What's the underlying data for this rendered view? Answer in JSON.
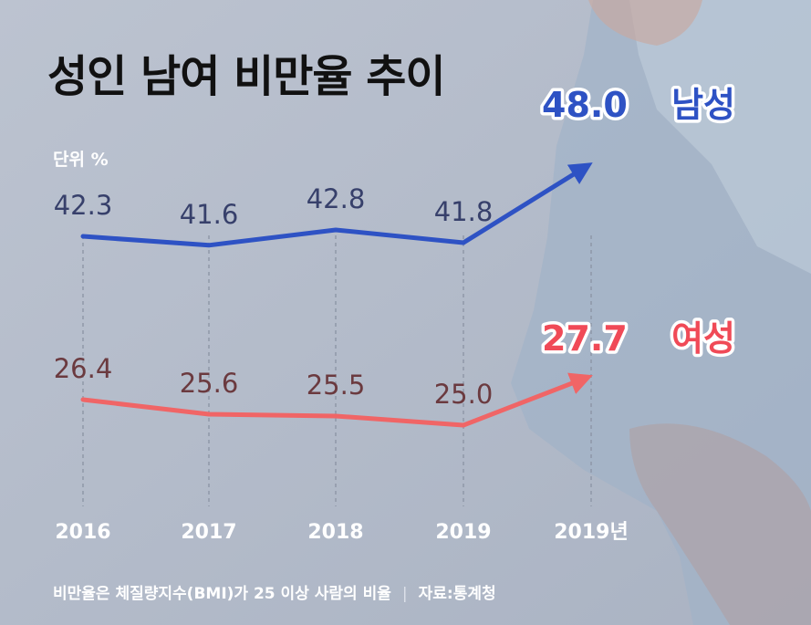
{
  "title": "성인 남여 비만율 추이",
  "unit_label": "단위 %",
  "footnote": {
    "note": "비만율은 체질량지수(BMI)가 25 이상 사람의 비율",
    "separator": "|",
    "source": "자료:통계청"
  },
  "colors": {
    "background": "#b9c1cf",
    "male_line": "#2e52c4",
    "female_line": "#f06566",
    "male_value": "#37406b",
    "female_value": "#6b3a3f",
    "male_highlight": "#2e52c4",
    "female_highlight": "#f04a57"
  },
  "chart_data": {
    "type": "line",
    "categories": [
      "2016",
      "2017",
      "2018",
      "2019",
      "2019년"
    ],
    "series": [
      {
        "name": "남성",
        "values": [
          42.3,
          41.6,
          42.8,
          41.8,
          48.0
        ],
        "labels": [
          "42.3",
          "41.6",
          "42.8",
          "41.8",
          "48.0"
        ]
      },
      {
        "name": "여성",
        "values": [
          26.4,
          25.6,
          25.5,
          25.0,
          27.7
        ],
        "labels": [
          "26.4",
          "25.6",
          "25.5",
          "25.0",
          "27.7"
        ]
      }
    ],
    "title": "성인 남여 비만율 추이",
    "xlabel": "",
    "ylabel": "단위 %",
    "grid": "vertical-dashed",
    "legend": "none"
  }
}
